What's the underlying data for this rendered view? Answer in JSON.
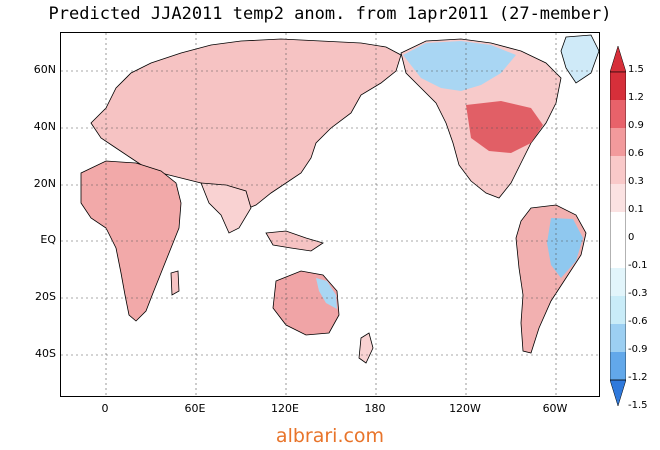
{
  "title": "Predicted JJA2011 temp2 anom. from 1apr2011 (27-member)",
  "map": {
    "lat_labels": [
      "60N",
      "40N",
      "20N",
      "EQ",
      "20S",
      "40S"
    ],
    "lon_labels": [
      "0",
      "60E",
      "120E",
      "180",
      "120W",
      "60W"
    ]
  },
  "colorbar": {
    "labels": [
      "1.5",
      "1.2",
      "0.9",
      "0.6",
      "0.3",
      "0.1",
      "0",
      "-0.1",
      "-0.3",
      "-0.6",
      "-0.9",
      "-1.2",
      "-1.5"
    ],
    "colors": {
      "max": "#d62f3a",
      "warm_3": "#e8626a",
      "warm_2": "#f29a9c",
      "warm_1": "#f9c9c9",
      "neutral": "#ffffff",
      "cool_1": "#c9ecf8",
      "cool_2": "#9ccff2",
      "cool_3": "#62a8ea",
      "min": "#2f79dc"
    }
  },
  "watermark": "albrari.com"
}
